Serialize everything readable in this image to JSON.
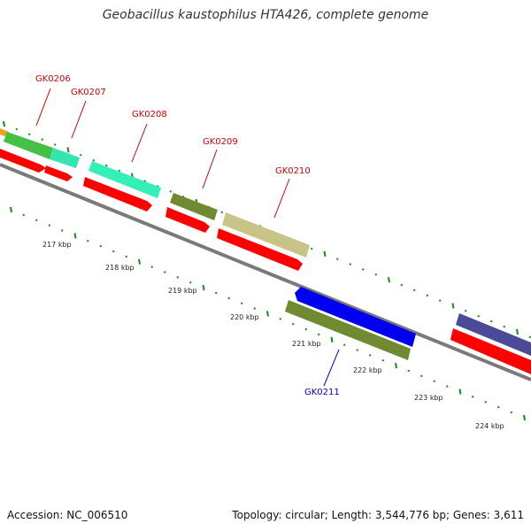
{
  "title": "Geobacillus kaustophilus HTA426, complete genome",
  "footer": {
    "accession": "Accession: NC_006510",
    "topology": "Topology: circular; Length: 3,544,776 bp; Genes: 3,611"
  },
  "colors": {
    "backbone": "#8a8a8a",
    "cds_forward_red": "#ff0000",
    "label_red": "#d40000",
    "label_blue": "#0000cc",
    "tick_green": "#1a8a1a"
  },
  "gene_labels": [
    {
      "text": "GK0206",
      "color": "#d40000"
    },
    {
      "text": "GK0207",
      "color": "#d40000"
    },
    {
      "text": "GK0208",
      "color": "#d40000"
    },
    {
      "text": "GK0209",
      "color": "#d40000"
    },
    {
      "text": "GK0210",
      "color": "#d40000"
    },
    {
      "text": "GK0211",
      "color": "#0000cc"
    }
  ],
  "kbp_labels": [
    "217 kbp",
    "218 kbp",
    "219 kbp",
    "220 kbp",
    "221 kbp",
    "222 kbp",
    "223 kbp",
    "224 kbp"
  ],
  "features": [
    {
      "name": "orange-feature",
      "color": "#f0a020"
    },
    {
      "name": "green-feature-gk0206",
      "color": "#44c044"
    },
    {
      "name": "teal-feature-gk0207",
      "color": "#33e6b0"
    },
    {
      "name": "teal-feature-gk0208",
      "color": "#33f0b8"
    },
    {
      "name": "olive-feature-gk0209",
      "color": "#6f8a30"
    },
    {
      "name": "khaki-feature-gk0210",
      "color": "#c8c488"
    },
    {
      "name": "blue-feature-gk0211",
      "color": "#0000ee"
    },
    {
      "name": "olive-feature-2",
      "color": "#6f8a30"
    },
    {
      "name": "purple-feature",
      "color": "#4a4a96"
    }
  ]
}
